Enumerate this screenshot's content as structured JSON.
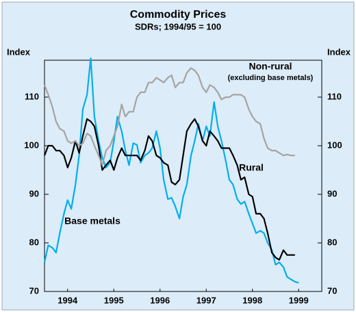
{
  "chart_data": {
    "type": "line",
    "title": "Commodity Prices",
    "subtitle": "SDRs; 1994/95 = 100",
    "y_label": "Index",
    "annotations": [
      "(excluding base metals)"
    ],
    "x": [
      1994,
      1994.08,
      1994.17,
      1994.25,
      1994.33,
      1994.42,
      1994.5,
      1994.58,
      1994.67,
      1994.75,
      1994.83,
      1994.92,
      1995,
      1995.08,
      1995.17,
      1995.25,
      1995.33,
      1995.42,
      1995.5,
      1995.58,
      1995.67,
      1995.75,
      1995.83,
      1995.92,
      1996,
      1996.08,
      1996.17,
      1996.25,
      1996.33,
      1996.42,
      1996.5,
      1996.58,
      1996.67,
      1996.75,
      1996.83,
      1996.92,
      1997,
      1997.08,
      1997.17,
      1997.25,
      1997.33,
      1997.42,
      1997.5,
      1997.58,
      1997.67,
      1997.75,
      1997.83,
      1997.92,
      1998,
      1998.08,
      1998.17,
      1998.25,
      1998.33,
      1998.42,
      1998.5,
      1998.58,
      1998.67,
      1998.75,
      1998.83,
      1998.92,
      1999,
      1999.08,
      1999.17,
      1999.25,
      1999.33,
      1999.42,
      1999.5
    ],
    "series": [
      {
        "name": "Base metals",
        "color": "#00aeef",
        "values": [
          76,
          79.5,
          79,
          78,
          82,
          86,
          88.8,
          87,
          92,
          98,
          107.5,
          110.5,
          118,
          106,
          101,
          97.5,
          95.5,
          96.5,
          101,
          106,
          103,
          99,
          96,
          100.5,
          100.2,
          96.5,
          98,
          98.5,
          99.5,
          103,
          99.5,
          93,
          89,
          89.3,
          87.5,
          85,
          89.5,
          92,
          98,
          101,
          104.5,
          101,
          104,
          102,
          109,
          104,
          101,
          97,
          93,
          92,
          89,
          88,
          88.5,
          86,
          84,
          82,
          82.5,
          82,
          80,
          78.5,
          75.5,
          76,
          75,
          73,
          72.5,
          72,
          71.8
        ]
      },
      {
        "name": "Rural",
        "color": "#000000",
        "values": [
          98,
          100,
          100,
          99,
          99,
          98,
          95.5,
          97.5,
          101,
          98.5,
          102,
          105.5,
          105,
          104,
          100,
          95,
          96,
          97,
          95,
          97.5,
          99.5,
          98,
          98,
          98,
          98,
          97,
          99,
          102,
          101,
          98,
          97.5,
          96.5,
          96,
          92.5,
          92,
          93,
          98,
          103,
          104.5,
          105.5,
          104,
          101,
          100,
          103,
          102,
          101,
          99.5,
          99.5,
          99.5,
          98,
          96,
          93,
          93.5,
          90,
          89.5,
          86,
          86,
          85,
          82,
          78,
          77,
          76.5,
          78.5,
          77.5,
          77.5,
          77.5,
          null
        ]
      },
      {
        "name": "Non-rural",
        "color": "#a3a3a3",
        "values": [
          112.5,
          110.5,
          108,
          105,
          103.5,
          103,
          101,
          100.5,
          101,
          100,
          100.5,
          102.5,
          102,
          100,
          98,
          96,
          99,
          100,
          102,
          104,
          108.5,
          106,
          107,
          107,
          110,
          111,
          111,
          113,
          113,
          114,
          113.5,
          113,
          114,
          114.5,
          112,
          113,
          113,
          115,
          116,
          115.5,
          114.5,
          112,
          111,
          112.5,
          112,
          111,
          109.5,
          110,
          110,
          110.5,
          110.5,
          110.5,
          110,
          107.5,
          106,
          105,
          104.5,
          101.5,
          99.5,
          99,
          99,
          98.5,
          98,
          98.2,
          98,
          98,
          null
        ]
      }
    ],
    "xlim": [
      1994,
      2000
    ],
    "xticks": [
      {
        "value": 1994.5,
        "label": "1994"
      },
      {
        "value": 1995.5,
        "label": "1995"
      },
      {
        "value": 1996.5,
        "label": "1996"
      },
      {
        "value": 1997.5,
        "label": "1997"
      },
      {
        "value": 1998.5,
        "label": "1998"
      },
      {
        "value": 1999.5,
        "label": "1999"
      }
    ],
    "ylim": [
      70,
      117.6
    ],
    "yticks": [
      70,
      80,
      90,
      100,
      110
    ],
    "grid": false
  }
}
